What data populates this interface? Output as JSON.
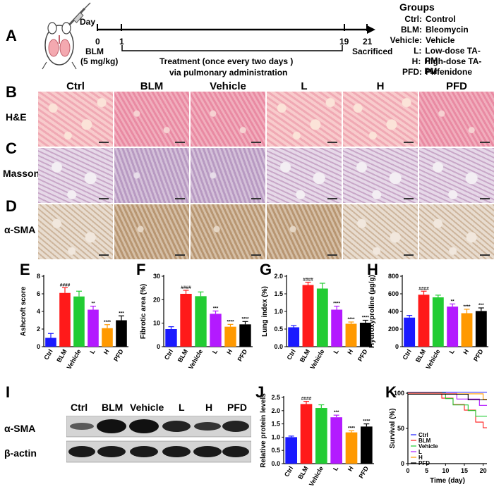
{
  "panels": {
    "A": "A",
    "B": "B",
    "C": "C",
    "D": "D",
    "E": "E",
    "F": "F",
    "G": "G",
    "H": "H",
    "I": "I",
    "J": "J",
    "K": "K"
  },
  "timeline": {
    "day_label": "Day",
    "day0": "0",
    "day1": "1",
    "day19": "19",
    "day21": "21",
    "bleo_dose_line1": "BLM",
    "bleo_dose_line2": "(5 mg/kg)",
    "treatment_line1": "Treatment (once every two days )",
    "treatment_line2": "via pulmonary administration",
    "sacrificed": "Sacrificed"
  },
  "groups_legend": {
    "title": "Groups",
    "entries": [
      {
        "abbr": "Ctrl:",
        "name": "Control"
      },
      {
        "abbr": "BLM:",
        "name": "Bleomycin"
      },
      {
        "abbr": "Vehicle:",
        "name": "Vehicle"
      },
      {
        "abbr": "L:",
        "name": "Low-dose TA-PM"
      },
      {
        "abbr": "H:",
        "name": "High-dose TA-PM"
      },
      {
        "abbr": "PFD:",
        "name": "Pirfenidone"
      }
    ]
  },
  "histology": {
    "columns": [
      "Ctrl",
      "BLM",
      "Vehicle",
      "L",
      "H",
      "PFD"
    ],
    "rows": [
      "H&E",
      "Masson",
      "α-SMA"
    ]
  },
  "western": {
    "lanes": [
      "Ctrl",
      "BLM",
      "Vehicle",
      "L",
      "H",
      "PFD"
    ],
    "bands": [
      "α-SMA",
      "β-actin"
    ]
  },
  "colors": {
    "Ctrl": "#1a1aff",
    "BLM": "#ff1a1a",
    "Vehicle": "#22cc33",
    "L": "#b31aff",
    "H": "#ff9900",
    "PFD": "#000000"
  },
  "chart_data": [
    {
      "id": "E",
      "type": "bar",
      "categories": [
        "Ctrl",
        "BLM",
        "Vehicle",
        "L",
        "H",
        "PFD"
      ],
      "values": [
        1.0,
        6.1,
        5.7,
        4.2,
        2.1,
        3.0
      ],
      "errors": [
        0.5,
        0.6,
        0.6,
        0.4,
        0.4,
        0.5
      ],
      "sig": [
        "",
        "####",
        "",
        "**",
        "****",
        "***"
      ],
      "ylabel": "Ashcroft score",
      "ylim": [
        0,
        8
      ],
      "yticks": [
        "0",
        "2",
        "4",
        "6",
        "8"
      ]
    },
    {
      "id": "F",
      "type": "bar",
      "categories": [
        "Ctrl",
        "BLM",
        "Vehicle",
        "L",
        "H",
        "PFD"
      ],
      "values": [
        7.5,
        22.5,
        21.5,
        14.0,
        8.5,
        9.5
      ],
      "errors": [
        1.0,
        1.5,
        1.8,
        1.2,
        1.0,
        1.2
      ],
      "sig": [
        "",
        "####",
        "",
        "***",
        "****",
        "****"
      ],
      "ylabel": "Fibrotic area (%)",
      "ylim": [
        0,
        30
      ],
      "yticks": [
        "0",
        "10",
        "20",
        "30"
      ]
    },
    {
      "id": "G",
      "type": "bar",
      "categories": [
        "Ctrl",
        "BLM",
        "Vehicle",
        "L",
        "H",
        "PFD"
      ],
      "values": [
        0.55,
        1.75,
        1.65,
        1.05,
        0.65,
        0.68
      ],
      "errors": [
        0.05,
        0.08,
        0.15,
        0.1,
        0.05,
        0.07
      ],
      "sig": [
        "",
        "####",
        "",
        "****",
        "****",
        "****"
      ],
      "ylabel": "Lung index (%)",
      "ylim": [
        0,
        2.0
      ],
      "yticks": [
        "0.0",
        "0.5",
        "1.0",
        "1.5",
        "2.0"
      ]
    },
    {
      "id": "H",
      "type": "bar",
      "categories": [
        "Ctrl",
        "BLM",
        "Vehicle",
        "L",
        "H",
        "PFD"
      ],
      "values": [
        330,
        590,
        560,
        455,
        380,
        405
      ],
      "errors": [
        25,
        40,
        25,
        30,
        45,
        35
      ],
      "sig": [
        "",
        "####",
        "",
        "**",
        "****",
        "***"
      ],
      "ylabel": "Hydroxyproline (μg/g)",
      "ylim": [
        0,
        800
      ],
      "yticks": [
        "0",
        "200",
        "400",
        "600",
        "800"
      ]
    },
    {
      "id": "J",
      "type": "bar",
      "categories": [
        "Ctrl",
        "BLM",
        "Vehicle",
        "L",
        "H",
        "PFD"
      ],
      "values": [
        1.0,
        2.25,
        2.1,
        1.75,
        1.18,
        1.4
      ],
      "errors": [
        0.04,
        0.1,
        0.12,
        0.08,
        0.06,
        0.1
      ],
      "sig": [
        "",
        "####",
        "",
        "***",
        "****",
        "****"
      ],
      "ylabel": "Relative protein levels",
      "ylim": [
        0,
        2.5
      ],
      "yticks": [
        "0.0",
        "0.5",
        "1.0",
        "1.5",
        "2.0",
        "2.5"
      ]
    },
    {
      "id": "K",
      "type": "line",
      "ylabel": "Survival (%)",
      "xlabel": "Time (day)",
      "xlim": [
        0,
        21
      ],
      "ylim": [
        0,
        100
      ],
      "xticks": [
        "0",
        "5",
        "10",
        "15",
        "20"
      ],
      "yticks": [
        "0",
        "50",
        "100"
      ],
      "series": [
        {
          "name": "Ctrl",
          "x": [
            0,
            21
          ],
          "y": [
            100,
            100
          ]
        },
        {
          "name": "BLM",
          "x": [
            0,
            9,
            9,
            12,
            12,
            15,
            15,
            18,
            18,
            20,
            20,
            21
          ],
          "y": [
            100,
            100,
            92,
            92,
            83,
            83,
            75,
            75,
            58,
            58,
            50,
            50
          ]
        },
        {
          "name": "Vehicle",
          "x": [
            0,
            10,
            10,
            12,
            12,
            16,
            16,
            18,
            18,
            21
          ],
          "y": [
            100,
            100,
            92,
            92,
            83,
            83,
            75,
            75,
            67,
            67
          ]
        },
        {
          "name": "L",
          "x": [
            0,
            13,
            13,
            19,
            19,
            21
          ],
          "y": [
            100,
            100,
            92,
            92,
            83,
            83
          ]
        },
        {
          "name": "H",
          "x": [
            0,
            20,
            20,
            21
          ],
          "y": [
            100,
            100,
            92,
            92
          ]
        },
        {
          "name": "PFD",
          "x": [
            0,
            16,
            16,
            21
          ],
          "y": [
            100,
            100,
            92,
            92
          ]
        }
      ]
    }
  ]
}
